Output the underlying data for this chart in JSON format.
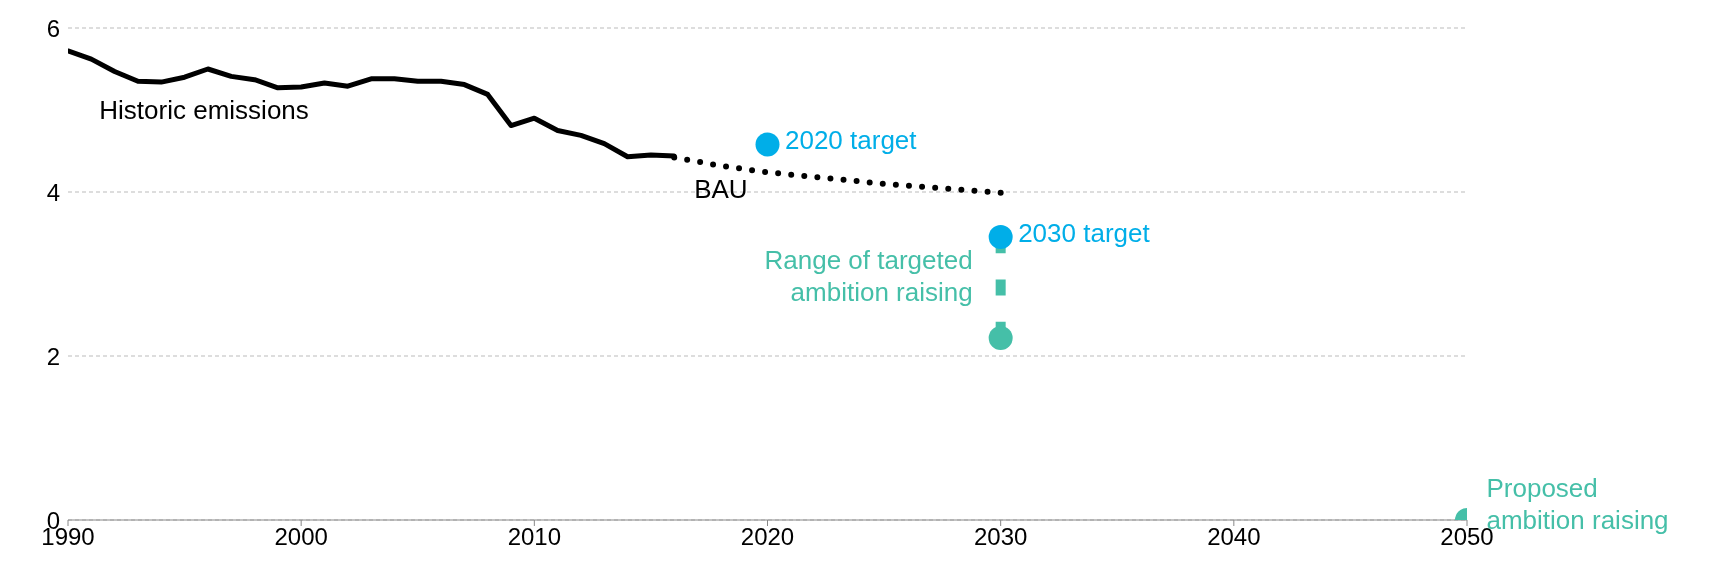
{
  "chart_data": {
    "type": "line",
    "xlim": [
      1990,
      2050
    ],
    "xticks": [
      1990,
      2000,
      2010,
      2020,
      2030,
      2040,
      2050
    ],
    "ylim": [
      0,
      6
    ],
    "yticks": [
      0,
      2,
      4,
      6
    ],
    "grid": "y",
    "series": [
      {
        "name": "Historic emissions",
        "color": "#000000",
        "line_style": "solid",
        "marker": "none",
        "x": [
          1990,
          1991,
          1992,
          1993,
          1994,
          1995,
          1996,
          1997,
          1998,
          1999,
          2000,
          2001,
          2002,
          2003,
          2004,
          2005,
          2006,
          2007,
          2008,
          2009,
          2010,
          2011,
          2012,
          2013,
          2014,
          2015,
          2016
        ],
        "values": [
          5.72,
          5.62,
          5.47,
          5.35,
          5.34,
          5.4,
          5.5,
          5.41,
          5.37,
          5.27,
          5.28,
          5.33,
          5.29,
          5.38,
          5.38,
          5.35,
          5.35,
          5.31,
          5.19,
          4.81,
          4.9,
          4.75,
          4.69,
          4.59,
          4.43,
          4.45,
          4.44
        ]
      },
      {
        "name": "BAU",
        "color": "#000000",
        "line_style": "dotted",
        "marker": "none",
        "x": [
          2016,
          2018,
          2020,
          2025,
          2030
        ],
        "values": [
          4.42,
          4.32,
          4.24,
          4.1,
          3.99
        ]
      },
      {
        "name": "2020 target",
        "type": "scatter",
        "color": "#00aee8",
        "marker": "circle",
        "x": [
          2020
        ],
        "values": [
          4.58
        ]
      },
      {
        "name": "2030 target",
        "type": "scatter",
        "color": "#00aee8",
        "marker": "circle",
        "x": [
          2030
        ],
        "values": [
          3.45
        ]
      },
      {
        "name": "Range of targeted ambition raising",
        "color": "#45bfa8",
        "line_style": "dashed",
        "marker": "none",
        "x": [
          2030,
          2030
        ],
        "values": [
          3.45,
          2.22
        ]
      },
      {
        "type": "scatter",
        "color": "#45bfa8",
        "marker": "circle",
        "x": [
          2030
        ],
        "values": [
          2.22
        ]
      },
      {
        "name": "Proposed ambition raising",
        "type": "scatter",
        "color": "#45bfa8",
        "marker": "circle",
        "x": [
          2050
        ],
        "values": [
          0
        ]
      }
    ]
  }
}
